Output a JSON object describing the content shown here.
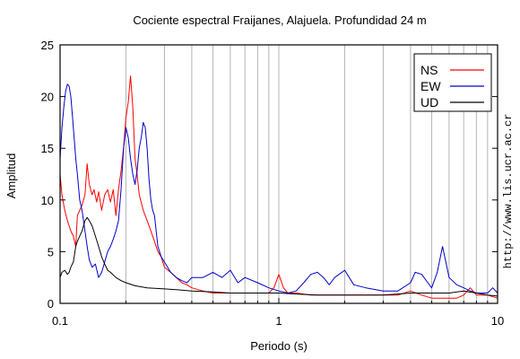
{
  "chart_data": {
    "type": "line",
    "title": "Cociente espectral Fraijanes, Alajuela. Profundidad 24 m",
    "xlabel": "Periodo (s)",
    "ylabel": "Amplitud",
    "x_scale": "log",
    "xlim": [
      0.1,
      10
    ],
    "ylim": [
      0,
      25
    ],
    "x_tick_labels": [
      "0.1",
      "1",
      "10"
    ],
    "y_ticks": [
      0,
      5,
      10,
      15,
      20,
      25
    ],
    "grid": "vertical",
    "legend_position": "top-right",
    "side_note": "http://www.lis.ucr.ac.cr",
    "series": [
      {
        "name": "NS",
        "color": "#ff0000",
        "x": [
          0.1,
          0.102,
          0.105,
          0.108,
          0.11,
          0.112,
          0.115,
          0.118,
          0.12,
          0.123,
          0.126,
          0.13,
          0.133,
          0.136,
          0.14,
          0.143,
          0.147,
          0.15,
          0.155,
          0.16,
          0.165,
          0.17,
          0.175,
          0.18,
          0.185,
          0.19,
          0.195,
          0.2,
          0.205,
          0.21,
          0.215,
          0.22,
          0.225,
          0.23,
          0.24,
          0.25,
          0.26,
          0.27,
          0.28,
          0.29,
          0.3,
          0.32,
          0.34,
          0.36,
          0.38,
          0.4,
          0.45,
          0.5,
          0.55,
          0.6,
          0.7,
          0.8,
          0.9,
          0.95,
          1.0,
          1.05,
          1.1,
          1.2,
          1.4,
          1.6,
          1.8,
          2.0,
          2.2,
          2.5,
          3.0,
          3.5,
          4.0,
          4.5,
          5.0,
          5.5,
          6.0,
          6.5,
          7.0,
          7.5,
          8.0,
          9.0,
          10.0
        ],
        "y": [
          12.5,
          10.5,
          9.0,
          8.0,
          7.5,
          7.0,
          6.5,
          5.5,
          8.5,
          9.0,
          9.5,
          10.5,
          13.5,
          11.5,
          10.5,
          11.0,
          9.8,
          10.8,
          9.0,
          10.5,
          11.0,
          9.8,
          11.0,
          8.5,
          11.0,
          12.8,
          15.0,
          18.0,
          19.5,
          22.0,
          19.0,
          14.0,
          12.5,
          10.5,
          9.0,
          8.0,
          7.0,
          6.0,
          5.0,
          4.5,
          3.5,
          3.0,
          2.5,
          2.0,
          1.8,
          1.5,
          1.2,
          1.0,
          1.0,
          1.0,
          1.0,
          1.0,
          1.0,
          1.5,
          2.8,
          1.5,
          1.0,
          1.0,
          0.8,
          0.8,
          0.8,
          0.8,
          0.8,
          0.8,
          0.8,
          0.8,
          1.2,
          0.8,
          0.5,
          0.5,
          0.5,
          0.5,
          0.8,
          1.5,
          0.8,
          0.8,
          0.5
        ]
      },
      {
        "name": "EW",
        "color": "#0000cc",
        "x": [
          0.1,
          0.102,
          0.104,
          0.106,
          0.108,
          0.11,
          0.112,
          0.114,
          0.116,
          0.118,
          0.12,
          0.123,
          0.126,
          0.13,
          0.133,
          0.136,
          0.14,
          0.145,
          0.15,
          0.155,
          0.16,
          0.165,
          0.17,
          0.175,
          0.18,
          0.185,
          0.19,
          0.195,
          0.2,
          0.205,
          0.21,
          0.215,
          0.22,
          0.225,
          0.23,
          0.235,
          0.24,
          0.245,
          0.25,
          0.255,
          0.26,
          0.265,
          0.27,
          0.28,
          0.29,
          0.3,
          0.32,
          0.34,
          0.36,
          0.38,
          0.4,
          0.45,
          0.5,
          0.55,
          0.6,
          0.65,
          0.7,
          0.8,
          0.9,
          1.0,
          1.1,
          1.2,
          1.3,
          1.4,
          1.5,
          1.6,
          1.7,
          1.8,
          2.0,
          2.2,
          2.5,
          3.0,
          3.5,
          4.0,
          4.2,
          4.5,
          4.8,
          5.0,
          5.3,
          5.6,
          5.8,
          6.0,
          6.5,
          7.0,
          7.5,
          8.0,
          9.0,
          9.5,
          10.0
        ],
        "y": [
          14.0,
          17.0,
          19.0,
          20.5,
          21.2,
          21.0,
          20.0,
          18.0,
          16.0,
          14.0,
          12.5,
          10.0,
          9.0,
          7.0,
          5.5,
          4.2,
          3.5,
          3.8,
          2.5,
          3.0,
          4.0,
          5.0,
          5.5,
          6.2,
          7.0,
          8.0,
          11.0,
          15.0,
          17.0,
          16.0,
          14.0,
          12.5,
          11.5,
          12.8,
          15.0,
          16.0,
          17.5,
          17.0,
          15.0,
          12.0,
          10.0,
          9.0,
          8.5,
          5.5,
          4.5,
          4.0,
          3.0,
          2.5,
          2.2,
          2.0,
          2.5,
          2.5,
          3.0,
          2.5,
          3.2,
          2.0,
          2.5,
          2.0,
          1.5,
          1.2,
          1.0,
          1.2,
          2.0,
          2.8,
          3.0,
          2.5,
          1.8,
          2.5,
          3.2,
          1.8,
          1.5,
          1.2,
          1.2,
          2.0,
          3.0,
          2.8,
          2.0,
          1.5,
          3.0,
          5.5,
          4.0,
          2.5,
          1.8,
          1.5,
          1.2,
          1.0,
          1.0,
          1.5,
          1.0
        ]
      },
      {
        "name": "UD",
        "color": "#000000",
        "x": [
          0.1,
          0.102,
          0.105,
          0.108,
          0.11,
          0.112,
          0.115,
          0.118,
          0.12,
          0.123,
          0.126,
          0.13,
          0.133,
          0.136,
          0.14,
          0.145,
          0.15,
          0.155,
          0.16,
          0.165,
          0.17,
          0.18,
          0.19,
          0.2,
          0.22,
          0.25,
          0.3,
          0.35,
          0.4,
          0.5,
          0.6,
          0.7,
          0.8,
          1.0,
          1.2,
          1.5,
          2.0,
          2.5,
          3.0,
          3.5,
          4.0,
          5.0,
          6.0,
          7.0,
          8.0,
          9.0,
          10.0
        ],
        "y": [
          2.5,
          3.0,
          3.2,
          2.8,
          3.0,
          3.5,
          4.0,
          5.5,
          6.0,
          6.5,
          7.0,
          8.0,
          8.3,
          8.0,
          7.5,
          6.5,
          5.5,
          4.5,
          3.8,
          3.2,
          3.0,
          2.5,
          2.2,
          2.0,
          1.7,
          1.5,
          1.4,
          1.3,
          1.2,
          1.1,
          1.0,
          1.0,
          1.0,
          1.0,
          0.9,
          0.8,
          0.8,
          0.8,
          0.8,
          0.9,
          1.0,
          1.0,
          1.0,
          1.2,
          1.0,
          0.8,
          0.7
        ]
      }
    ]
  }
}
